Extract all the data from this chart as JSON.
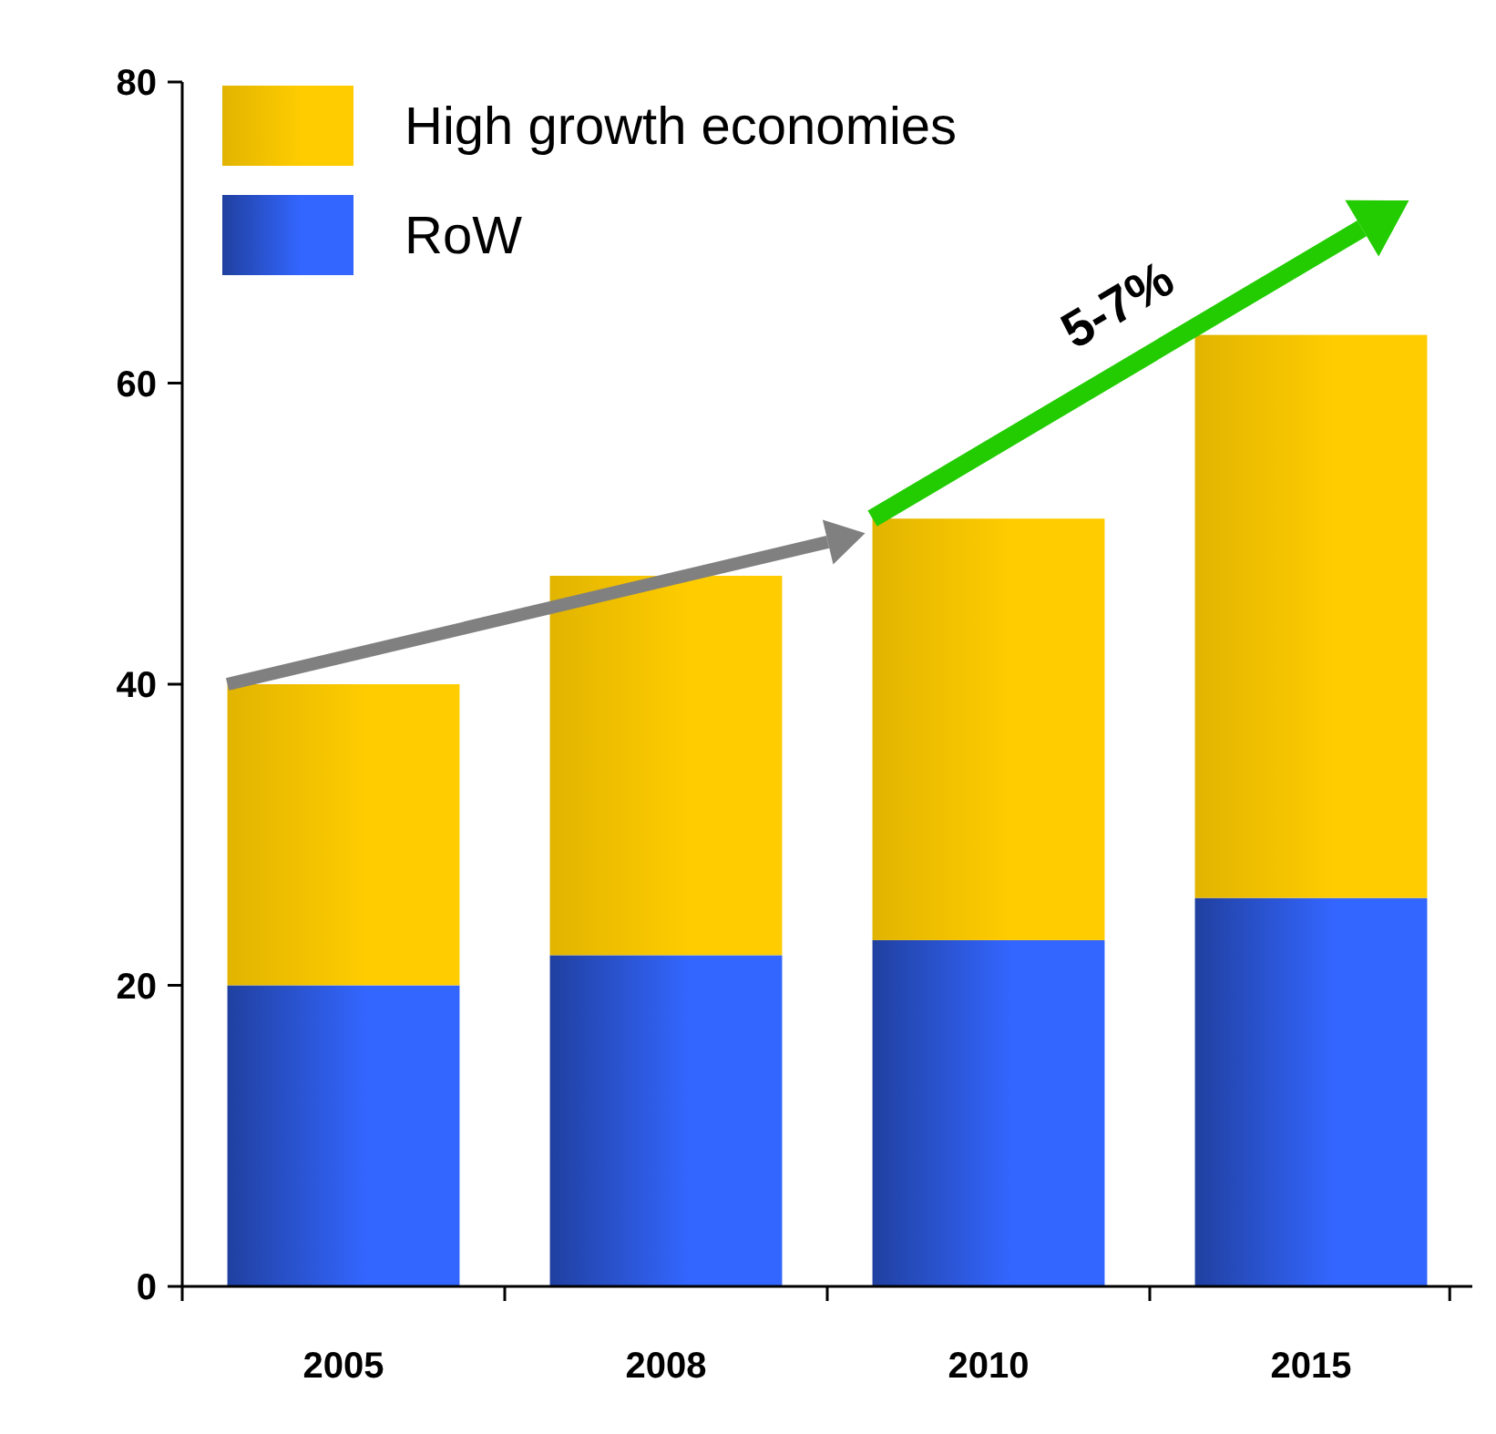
{
  "chart_data": {
    "type": "bar",
    "stacked": true,
    "categories": [
      "2005",
      "2008",
      "2010",
      "2015"
    ],
    "series": [
      {
        "name": "RoW",
        "color": "#3366ff",
        "values": [
          20,
          22,
          23,
          25.8
        ]
      },
      {
        "name": "High growth economies",
        "color": "#ffcc00",
        "values": [
          20,
          25.2,
          28,
          37.4
        ]
      }
    ],
    "ylim": [
      0,
      80
    ],
    "yticks": [
      0,
      20,
      40,
      60,
      80
    ],
    "grid": false,
    "legend": "top left",
    "annotations": [
      "5-7%"
    ]
  }
}
